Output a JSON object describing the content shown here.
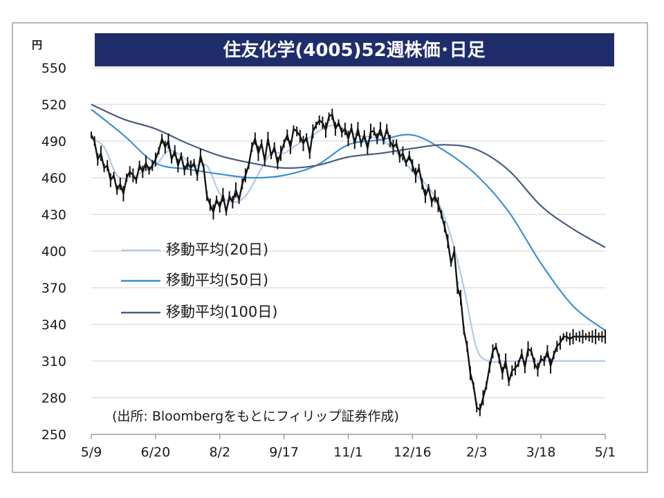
{
  "chart_data": {
    "type": "line",
    "title": "住友化学(4005)52週株価･日足",
    "y_unit": "円",
    "ylim": [
      250,
      550
    ],
    "y_ticks": [
      550,
      520,
      490,
      460,
      430,
      400,
      370,
      340,
      310,
      280,
      250
    ],
    "x_tick_labels": [
      "5/9",
      "6/20",
      "8/2",
      "9/17",
      "11/1",
      "12/16",
      "2/3",
      "3/18",
      "5/1"
    ],
    "grid": "horizontal",
    "source_note": "(出所: Bloombergをもとにフィリップ証券作成)",
    "price_series": {
      "name": "",
      "x": [
        0,
        0.05,
        0.1,
        0.15,
        0.2,
        0.25,
        0.3,
        0.35,
        0.4,
        0.45,
        0.5,
        0.55,
        0.6,
        0.65,
        0.7,
        0.75,
        0.8,
        0.85,
        0.9,
        0.95,
        1.0,
        1.05,
        1.1,
        1.15,
        1.2,
        1.25,
        1.3,
        1.35,
        1.4,
        1.45,
        1.5,
        1.55,
        1.6,
        1.65,
        1.7,
        1.75,
        1.8,
        1.85,
        1.9,
        1.95,
        2.0,
        2.05,
        2.1,
        2.15,
        2.2,
        2.25,
        2.3,
        2.35,
        2.4,
        2.45,
        2.5,
        2.55,
        2.6,
        2.65,
        2.7,
        2.75,
        2.8,
        2.85,
        2.9,
        2.95,
        3.0,
        3.05,
        3.1,
        3.15,
        3.2,
        3.25,
        3.3,
        3.35,
        3.4,
        3.45,
        3.5,
        3.55,
        3.6,
        3.65,
        3.7,
        3.75,
        3.8,
        3.85,
        3.9,
        3.95,
        4.0,
        4.05,
        4.1,
        4.15,
        4.2,
        4.25,
        4.3,
        4.35,
        4.4,
        4.45,
        4.5,
        4.55,
        4.6,
        4.65,
        4.7,
        4.75,
        4.8,
        4.85,
        4.9,
        4.95,
        5.0,
        5.05,
        5.1,
        5.15,
        5.2,
        5.25,
        5.3,
        5.35,
        5.4,
        5.45,
        5.5,
        5.55,
        5.6,
        5.65,
        5.7,
        5.75,
        5.8,
        5.85,
        5.9,
        5.95,
        6.0,
        6.05,
        6.1,
        6.15,
        6.2,
        6.25,
        6.3,
        6.35,
        6.4,
        6.45,
        6.5,
        6.55,
        6.6,
        6.65,
        6.7,
        6.75,
        6.8,
        6.85,
        6.9,
        6.95,
        7.0,
        7.05,
        7.1,
        7.15,
        7.2,
        7.25,
        7.3,
        7.35,
        7.4,
        7.45,
        7.5,
        7.55,
        7.6,
        7.65,
        7.7,
        7.75,
        7.8,
        7.85,
        7.9,
        7.95,
        8.0
      ],
      "values": [
        495,
        490,
        475,
        480,
        468,
        470,
        458,
        462,
        450,
        455,
        447,
        460,
        465,
        462,
        458,
        470,
        465,
        472,
        466,
        470,
        475,
        482,
        492,
        485,
        490,
        475,
        482,
        470,
        478,
        466,
        472,
        468,
        472,
        462,
        478,
        468,
        445,
        438,
        432,
        442,
        436,
        446,
        432,
        445,
        440,
        450,
        442,
        455,
        462,
        470,
        485,
        492,
        480,
        488,
        474,
        492,
        478,
        485,
        472,
        480,
        488,
        495,
        485,
        500,
        498,
        494,
        488,
        493,
        480,
        498,
        503,
        507,
        505,
        499,
        510,
        512,
        500,
        505,
        497,
        500,
        492,
        501,
        488,
        500,
        488,
        495,
        484,
        498,
        498,
        492,
        500,
        490,
        500,
        490,
        485,
        488,
        477,
        480,
        472,
        478,
        470,
        462,
        468,
        455,
        445,
        452,
        440,
        445,
        438,
        430,
        420,
        408,
        390,
        400,
        370,
        362,
        335,
        322,
        300,
        290,
        272,
        270,
        280,
        290,
        305,
        318,
        322,
        312,
        300,
        310,
        293,
        302,
        304,
        308,
        316,
        305,
        320,
        318,
        308,
        303,
        312,
        310,
        318,
        306,
        315,
        322,
        325,
        330,
        330,
        328,
        330,
        330,
        330,
        330,
        330,
        330,
        330,
        330,
        330,
        330,
        330
      ]
    },
    "moving_averages": [
      {
        "name": "移動平均(20日)",
        "color": "#b4c8e4",
        "x": [
          0,
          0.2,
          0.4,
          0.6,
          0.8,
          1.0,
          1.2,
          1.4,
          1.6,
          1.8,
          2.0,
          2.2,
          2.4,
          2.6,
          2.8,
          3.0,
          3.2,
          3.4,
          3.6,
          3.8,
          4.0,
          4.2,
          4.4,
          4.6,
          4.8,
          5.0,
          5.2,
          5.4,
          5.6,
          5.8,
          6.0,
          6.2,
          6.4,
          6.6,
          6.8,
          7.0,
          7.2,
          7.4,
          7.6,
          7.8,
          8.0
        ],
        "values": [
          492,
          485,
          462,
          460,
          465,
          470,
          482,
          478,
          470,
          470,
          447,
          440,
          445,
          463,
          480,
          480,
          487,
          493,
          500,
          503,
          498,
          494,
          493,
          488,
          478,
          465,
          455,
          440,
          412,
          370,
          320,
          310,
          310,
          310,
          310,
          310,
          310,
          310,
          310,
          310,
          310
        ]
      },
      {
        "name": "移動平均(50日)",
        "color": "#3c8fd0",
        "x": [
          0,
          0.5,
          1.0,
          1.5,
          2.0,
          2.5,
          3.0,
          3.5,
          4.0,
          4.5,
          5.0,
          5.5,
          6.0,
          6.5,
          7.0,
          7.5,
          8.0
        ],
        "values": [
          516,
          495,
          472,
          467,
          463,
          460,
          462,
          470,
          487,
          491,
          495,
          482,
          462,
          432,
          390,
          355,
          335
        ]
      },
      {
        "name": "移動平均(100日)",
        "color": "#4a5a80",
        "x": [
          0,
          0.5,
          1.0,
          1.5,
          2.0,
          2.5,
          3.0,
          3.5,
          4.0,
          4.5,
          5.0,
          5.5,
          6.0,
          6.5,
          7.0,
          7.5,
          8.0
        ],
        "values": [
          520,
          508,
          500,
          488,
          478,
          472,
          468,
          470,
          477,
          480,
          484,
          487,
          483,
          466,
          437,
          418,
          403
        ]
      }
    ]
  }
}
